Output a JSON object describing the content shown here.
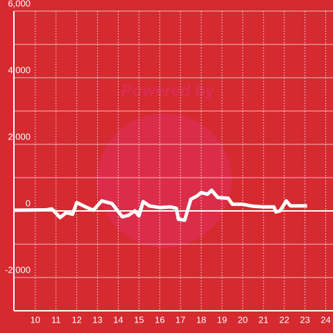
{
  "chart_data": {
    "type": "line",
    "watermark": "Powered by",
    "background": "#d42a30",
    "x": [
      9,
      10.5,
      10.8,
      11.2,
      11.5,
      11.8,
      12.0,
      12.5,
      12.8,
      13.2,
      13.7,
      14.2,
      14.5,
      14.8,
      15.0,
      15.2,
      15.5,
      16.0,
      16.5,
      16.8,
      16.9,
      17.2,
      17.5,
      17.8,
      18.0,
      18.3,
      18.5,
      18.8,
      19.3,
      19.5,
      20.0,
      20.5,
      21.0,
      21.5,
      21.6,
      21.8,
      22.1,
      22.3,
      23.1
    ],
    "series": [
      {
        "color": "#ffffff",
        "values": [
          20,
          30,
          60,
          -200,
          -50,
          -100,
          250,
          100,
          20,
          300,
          220,
          -180,
          -130,
          0,
          -150,
          280,
          150,
          100,
          120,
          80,
          -250,
          -280,
          350,
          450,
          550,
          500,
          620,
          400,
          380,
          200,
          200,
          140,
          120,
          120,
          -30,
          0,
          300,
          150,
          150
        ]
      }
    ],
    "xlim": [
      8.97,
      24.35
    ],
    "xticks": [
      10,
      11,
      12,
      13,
      14,
      15,
      16,
      17,
      18,
      19,
      20,
      21,
      22,
      23,
      24
    ],
    "ylim": [
      -3000,
      6000
    ],
    "yticks": [
      {
        "value": -2000,
        "label": "-2,000"
      },
      0,
      {
        "value": 2000,
        "label": "2,000"
      },
      {
        "value": 4000,
        "label": "4,000"
      },
      {
        "value": 6000,
        "label": "6,000"
      }
    ],
    "y_minor_ticks": [
      -3000,
      -1000,
      1000,
      3000,
      5000
    ],
    "grid": true
  }
}
